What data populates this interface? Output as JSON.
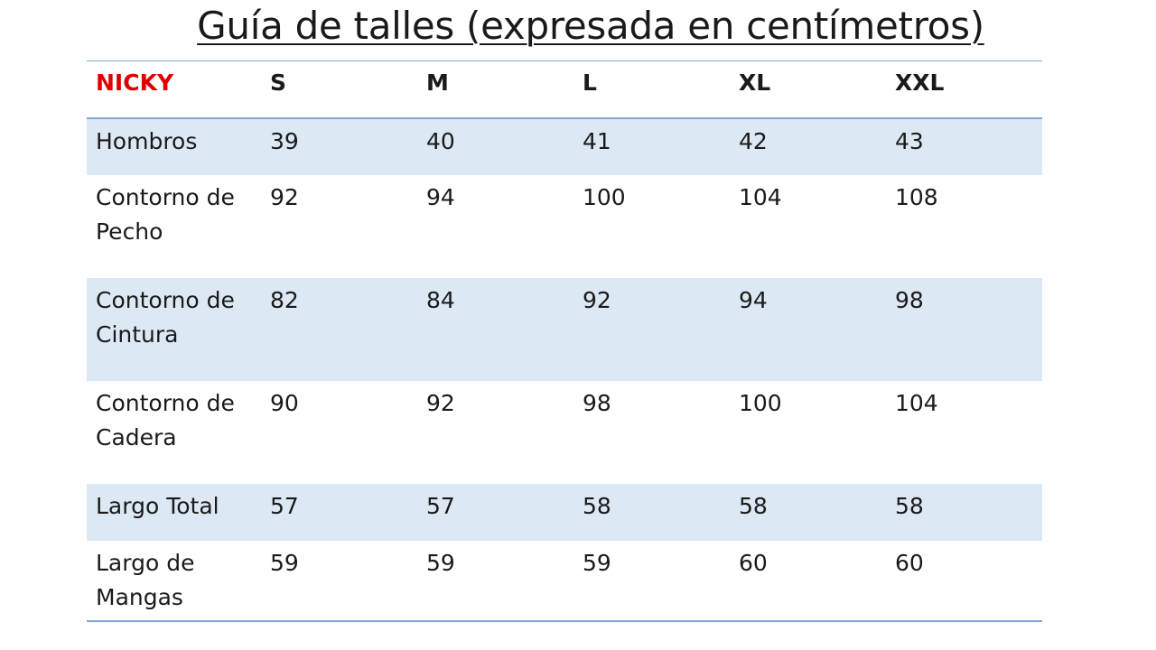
{
  "title": "Guía de talles (expresada en centímetros)",
  "table": {
    "brand_label": "NICKY",
    "sizes": [
      "S",
      "M",
      "L",
      "XL",
      "XXL"
    ],
    "rows": [
      {
        "label_lines": [
          "Hombros"
        ],
        "values": [
          "39",
          "40",
          "41",
          "42",
          "43"
        ]
      },
      {
        "label_lines": [
          "Contorno de",
          "Pecho"
        ],
        "values": [
          "92",
          "94",
          "100",
          "104",
          "108"
        ]
      },
      {
        "label_lines": [
          "Contorno de",
          "Cintura"
        ],
        "values": [
          "82",
          "84",
          "92",
          "94",
          "98"
        ]
      },
      {
        "label_lines": [
          "Contorno de",
          "Cadera"
        ],
        "values": [
          "90",
          "92",
          "98",
          "100",
          "104"
        ]
      },
      {
        "label_lines": [
          "Largo Total"
        ],
        "values": [
          "57",
          "57",
          "58",
          "58",
          "58"
        ]
      },
      {
        "label_lines": [
          "Largo de",
          "Mangas"
        ],
        "values": [
          "59",
          "59",
          "59",
          "60",
          "60"
        ]
      }
    ]
  },
  "colors": {
    "brand_text": "#e00000",
    "band_fill": "#dde8f5",
    "rule_line": "#7fa7cf"
  }
}
